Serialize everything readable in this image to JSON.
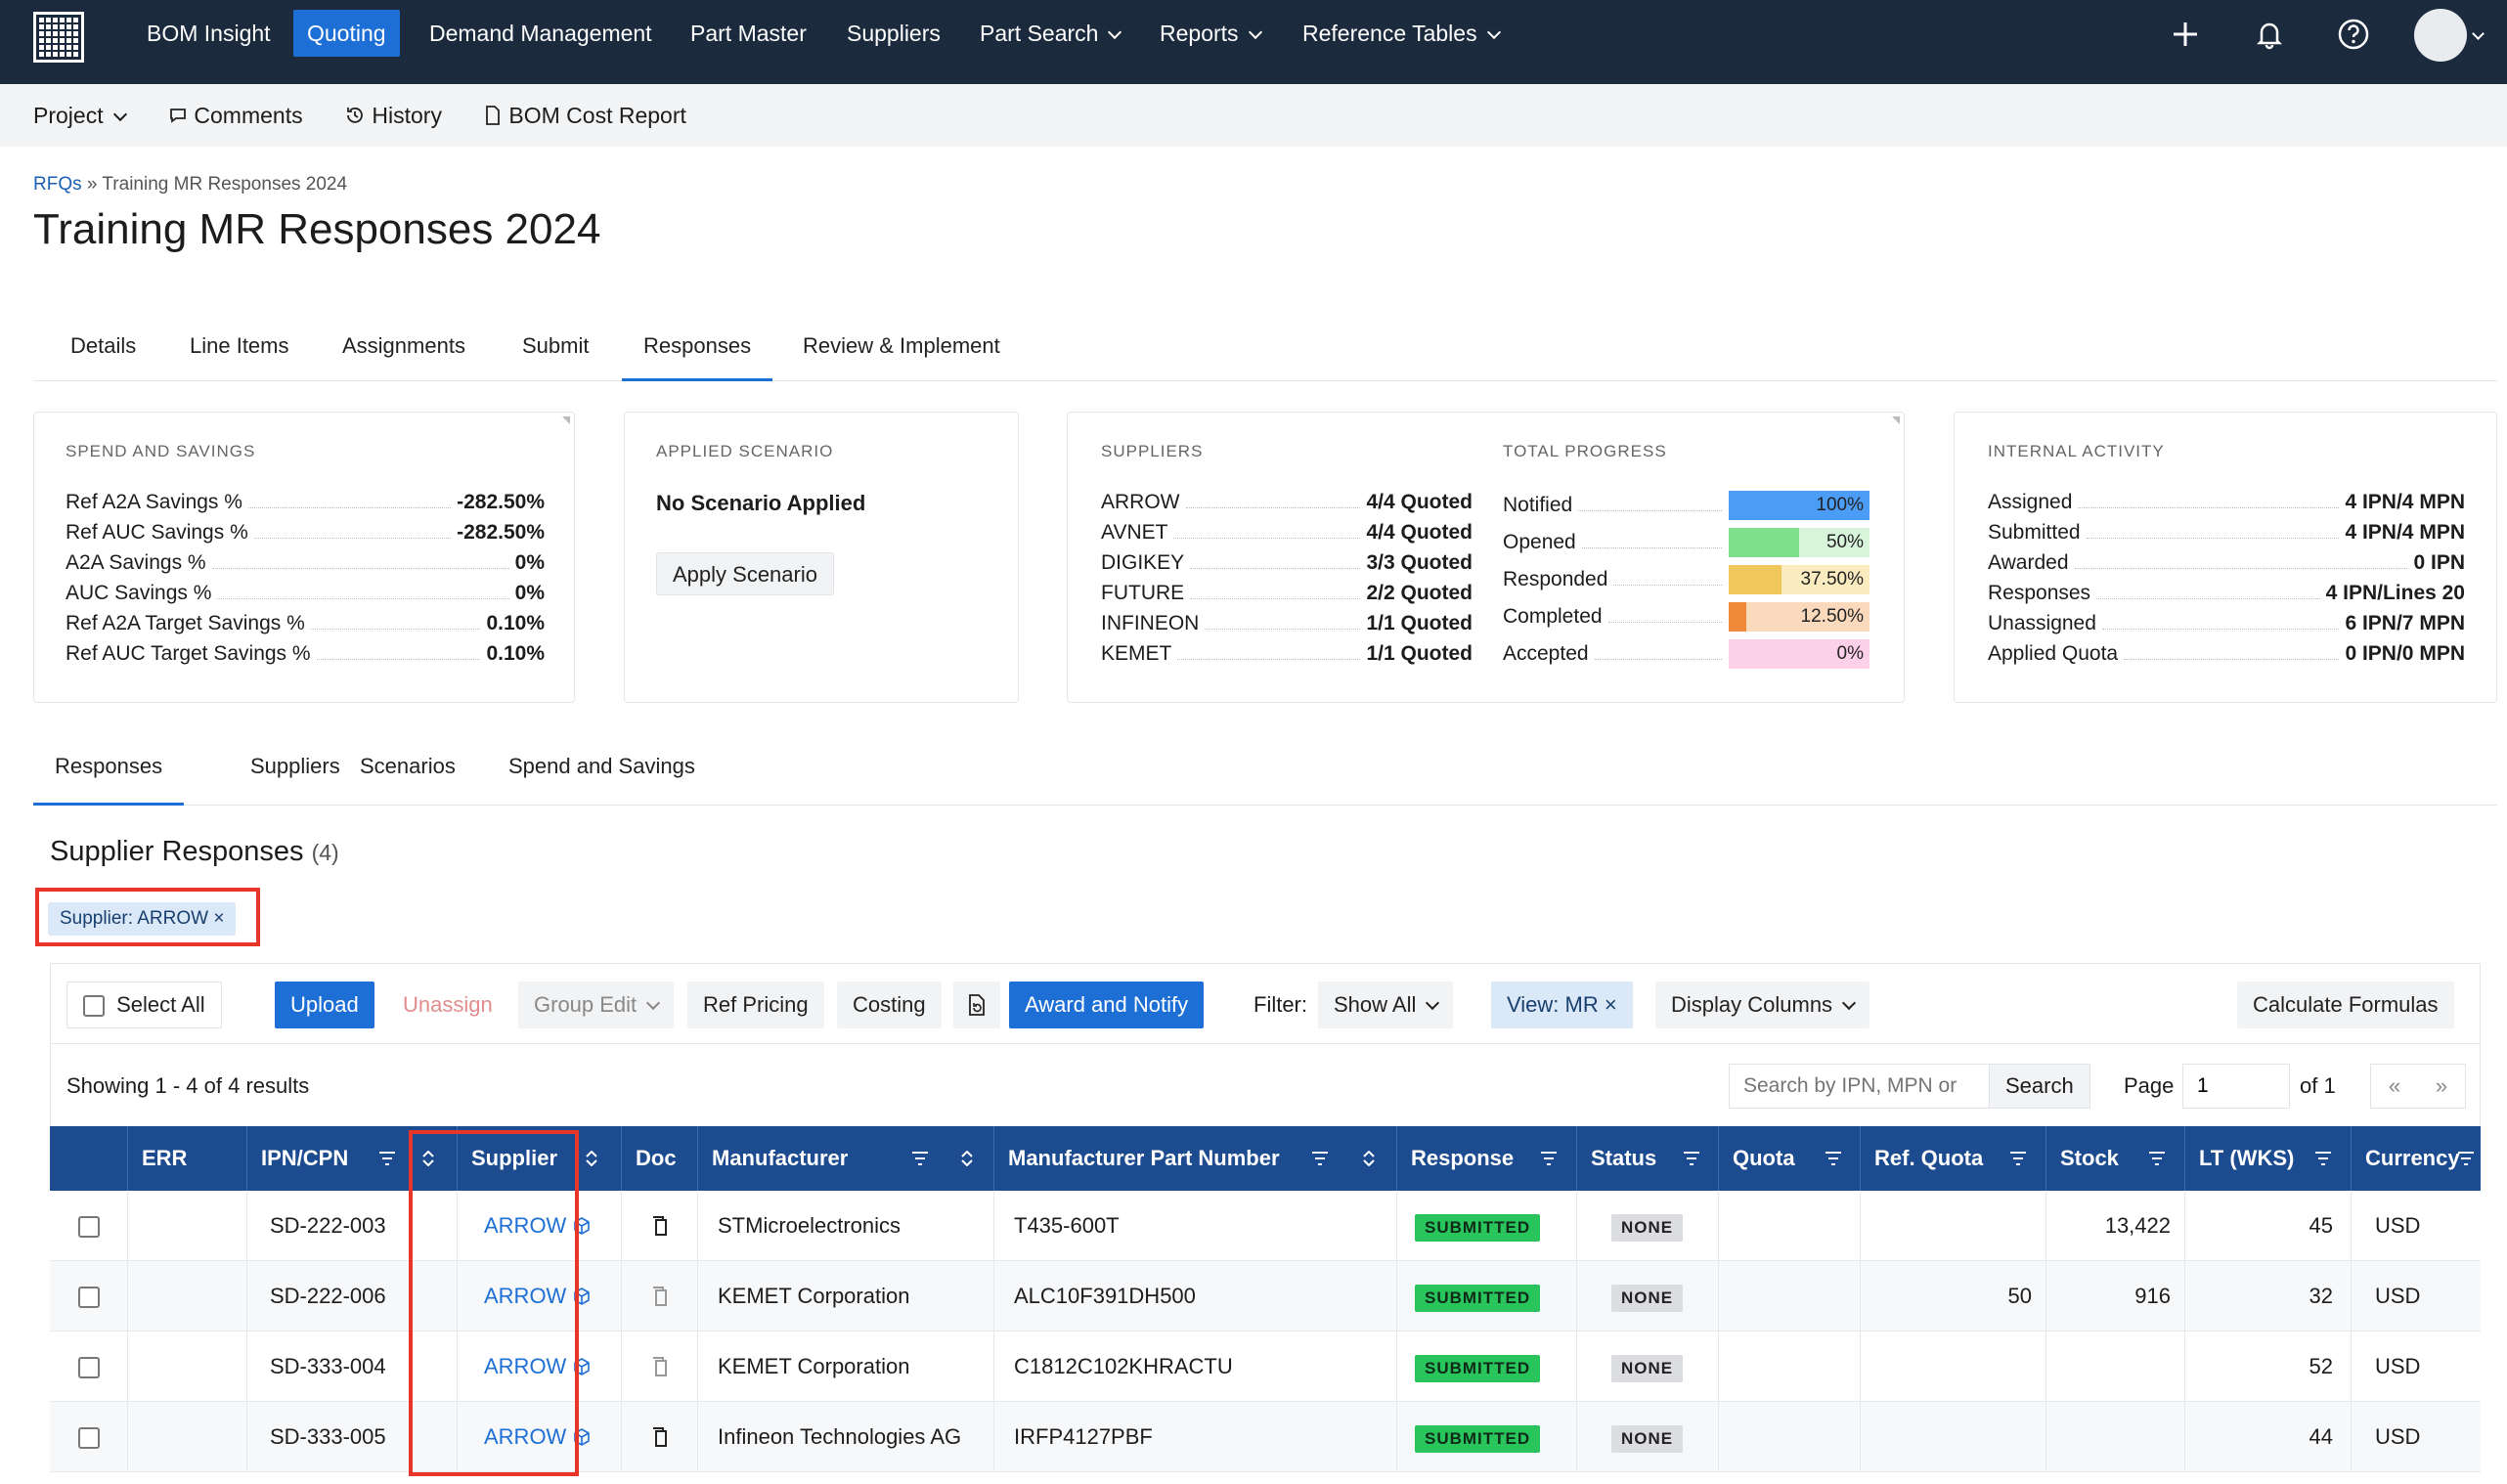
{
  "nav": {
    "items": [
      {
        "label": "BOM Insight"
      },
      {
        "label": "Quoting"
      },
      {
        "label": "Demand Management"
      },
      {
        "label": "Part Master"
      },
      {
        "label": "Suppliers"
      },
      {
        "label": "Part Search"
      },
      {
        "label": "Reports"
      },
      {
        "label": "Reference Tables"
      }
    ]
  },
  "subbar": {
    "project": "Project",
    "comments": "Comments",
    "history": "History",
    "bom_cost_report": "BOM Cost Report"
  },
  "breadcrumb": {
    "root": "RFQs",
    "sep": "»",
    "current": "Training MR Responses 2024"
  },
  "page_title": "Training MR Responses 2024",
  "tabs": [
    "Details",
    "Line Items",
    "Assignments",
    "Submit",
    "Responses",
    "Review & Implement"
  ],
  "spend": {
    "title": "SPEND AND SAVINGS",
    "rows": [
      {
        "k": "Ref A2A Savings %",
        "v": "-282.50%"
      },
      {
        "k": "Ref AUC Savings %",
        "v": "-282.50%"
      },
      {
        "k": "A2A Savings %",
        "v": "0%"
      },
      {
        "k": "AUC Savings %",
        "v": "0%"
      },
      {
        "k": "Ref A2A Target Savings %",
        "v": "0.10%"
      },
      {
        "k": "Ref AUC Target Savings %",
        "v": "0.10%"
      }
    ]
  },
  "scenario": {
    "title": "APPLIED SCENARIO",
    "status": "No Scenario Applied",
    "button": "Apply Scenario"
  },
  "suppliers_card": {
    "title": "SUPPLIERS",
    "rows": [
      {
        "k": "ARROW",
        "v": "4/4 Quoted"
      },
      {
        "k": "AVNET",
        "v": "4/4 Quoted"
      },
      {
        "k": "DIGIKEY",
        "v": "3/3 Quoted"
      },
      {
        "k": "FUTURE",
        "v": "2/2 Quoted"
      },
      {
        "k": "INFINEON",
        "v": "1/1 Quoted"
      },
      {
        "k": "KEMET",
        "v": "1/1 Quoted"
      }
    ]
  },
  "progress": {
    "title": "TOTAL PROGRESS",
    "rows": [
      {
        "k": "Notified",
        "v": "100%",
        "pct": 100,
        "color": "#4b9cf5",
        "bg": "#cfe3fb"
      },
      {
        "k": "Opened",
        "v": "50%",
        "pct": 50,
        "color": "#7ee08a",
        "bg": "#d8f5dc"
      },
      {
        "k": "Responded",
        "v": "37.50%",
        "pct": 37.5,
        "color": "#f0c75a",
        "bg": "#fbecc0"
      },
      {
        "k": "Completed",
        "v": "12.50%",
        "pct": 12.5,
        "color": "#f08a3a",
        "bg": "#fbd9bd"
      },
      {
        "k": "Accepted",
        "v": "0%",
        "pct": 0,
        "color": "#f7a6d3",
        "bg": "#fbd0e8"
      }
    ]
  },
  "internal": {
    "title": "INTERNAL ACTIVITY",
    "rows": [
      {
        "k": "Assigned",
        "v": "4 IPN/4 MPN"
      },
      {
        "k": "Submitted",
        "v": "4 IPN/4 MPN"
      },
      {
        "k": "Awarded",
        "v": "0 IPN"
      },
      {
        "k": "Responses",
        "v": "4 IPN/Lines 20"
      },
      {
        "k": "Unassigned",
        "v": "6 IPN/7 MPN"
      },
      {
        "k": "Applied Quota",
        "v": "0 IPN/0 MPN"
      }
    ]
  },
  "subtabs": [
    "Responses",
    "Suppliers",
    "Scenarios",
    "Spend and Savings"
  ],
  "section": {
    "title": "Supplier Responses",
    "count": "(4)"
  },
  "filter_chip": "Supplier: ARROW ×",
  "toolbar": {
    "select_all": "Select All",
    "upload": "Upload",
    "unassign": "Unassign",
    "group_edit": "Group Edit",
    "ref_pricing": "Ref Pricing",
    "costing": "Costing",
    "award": "Award and Notify",
    "filter_label": "Filter:",
    "filter_value": "Show All",
    "view": "View: MR ×",
    "display_columns": "Display Columns",
    "calc": "Calculate Formulas"
  },
  "results": {
    "showing": "Showing 1 - 4 of 4 results",
    "search_placeholder": "Search by IPN, MPN or",
    "search_button": "Search",
    "page_label": "Page",
    "page_value": "1",
    "of": "of 1",
    "first": "«",
    "next": "»"
  },
  "columns": [
    "ERR",
    "IPN/CPN",
    "Supplier",
    "Doc",
    "Manufacturer",
    "Manufacturer Part Number",
    "Response",
    "Status",
    "Quota",
    "Ref. Quota",
    "Stock",
    "LT (WKS)",
    "Currency"
  ],
  "rows": [
    {
      "ipn": "SD-222-003",
      "supplier": "ARROW",
      "manufacturer": "STMicroelectronics",
      "mpn": "T435-600T",
      "response": "SUBMITTED",
      "status": "NONE",
      "quota": "",
      "ref_quota": "",
      "stock": "13,422",
      "lt": "45",
      "currency": "USD"
    },
    {
      "ipn": "SD-222-006",
      "supplier": "ARROW",
      "manufacturer": "KEMET Corporation",
      "mpn": "ALC10F391DH500",
      "response": "SUBMITTED",
      "status": "NONE",
      "quota": "",
      "ref_quota": "50",
      "stock": "916",
      "lt": "32",
      "currency": "USD"
    },
    {
      "ipn": "SD-333-004",
      "supplier": "ARROW",
      "manufacturer": "KEMET Corporation",
      "mpn": "C1812C102KHRACTU",
      "response": "SUBMITTED",
      "status": "NONE",
      "quota": "",
      "ref_quota": "",
      "stock": "",
      "lt": "52",
      "currency": "USD"
    },
    {
      "ipn": "SD-333-005",
      "supplier": "ARROW",
      "manufacturer": "Infineon Technologies AG",
      "mpn": "IRFP4127PBF",
      "response": "SUBMITTED",
      "status": "NONE",
      "quota": "",
      "ref_quota": "",
      "stock": "",
      "lt": "44",
      "currency": "USD"
    }
  ]
}
